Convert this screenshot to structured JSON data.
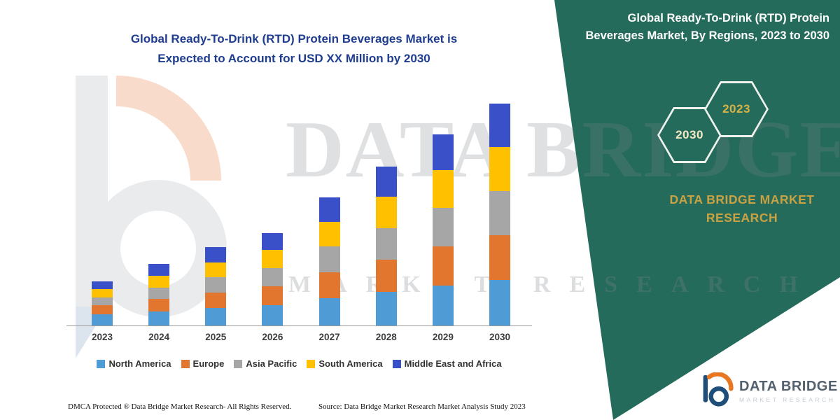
{
  "title": {
    "line1": "Global Ready-To-Drink (RTD) Protein Beverages Market is",
    "line2": "Expected to Account for USD XX Million by 2030",
    "color": "#1F3D8F"
  },
  "side_panel": {
    "background": "#256B5B",
    "heading": "Global Ready-To-Drink (RTD) Protein Beverages Market, By Regions, 2023 to 2030",
    "badges": [
      {
        "label": "2030",
        "text_color": "#F2E8C4"
      },
      {
        "label": "2023",
        "text_color": "#D9B245"
      }
    ],
    "brand": {
      "line1": "DATA BRIDGE MARKET",
      "line2": "RESEARCH",
      "color": "#C9A243"
    }
  },
  "watermark": {
    "line1": "DATA BRIDGE",
    "line2": "MARKET RESEARCH"
  },
  "chart_data": {
    "type": "bar",
    "stacked": true,
    "title": "Global Ready-To-Drink (RTD) Protein Beverages Market is Expected to Account for USD XX Million by 2030",
    "xlabel": "",
    "ylabel": "",
    "ylim": [
      0,
      32
    ],
    "grid": false,
    "y_axis_labels_visible": false,
    "legend_position": "bottom",
    "note": "No numeric value labels or y-axis shown; values are relative estimates read from bar heights, USD value shown as XX in title",
    "categories": [
      "2023",
      "2024",
      "2025",
      "2026",
      "2027",
      "2028",
      "2029",
      "2030"
    ],
    "series": [
      {
        "name": "North America",
        "color": "#4F9BD5",
        "values": [
          1.6,
          2.0,
          2.5,
          2.9,
          3.8,
          4.7,
          5.6,
          6.4
        ]
      },
      {
        "name": "Europe",
        "color": "#E2762F",
        "values": [
          1.3,
          1.8,
          2.2,
          2.7,
          3.6,
          4.5,
          5.5,
          6.3
        ]
      },
      {
        "name": "Asia Pacific",
        "color": "#A6A6A6",
        "values": [
          1.1,
          1.6,
          2.2,
          2.6,
          3.6,
          4.4,
          5.4,
          6.2
        ]
      },
      {
        "name": "South America",
        "color": "#FFC000",
        "values": [
          1.2,
          1.7,
          2.1,
          2.6,
          3.4,
          4.4,
          5.3,
          6.2
        ]
      },
      {
        "name": "Middle East and Africa",
        "color": "#3A50C9",
        "values": [
          1.1,
          1.7,
          2.2,
          2.4,
          3.4,
          4.2,
          5.0,
          6.1
        ]
      }
    ],
    "totals_estimated": [
      6.3,
      8.8,
      11.2,
      13.2,
      17.8,
      22.2,
      26.8,
      31.2
    ]
  },
  "footer": {
    "left": "DMCA Protected ® Data Bridge Market Research-  All Rights Reserved.",
    "source": "Source: Data Bridge Market Research  Market Analysis Study 2023"
  },
  "logo": {
    "name": "DATA BRIDGE",
    "subtext": "MARKET RESEARCH"
  }
}
